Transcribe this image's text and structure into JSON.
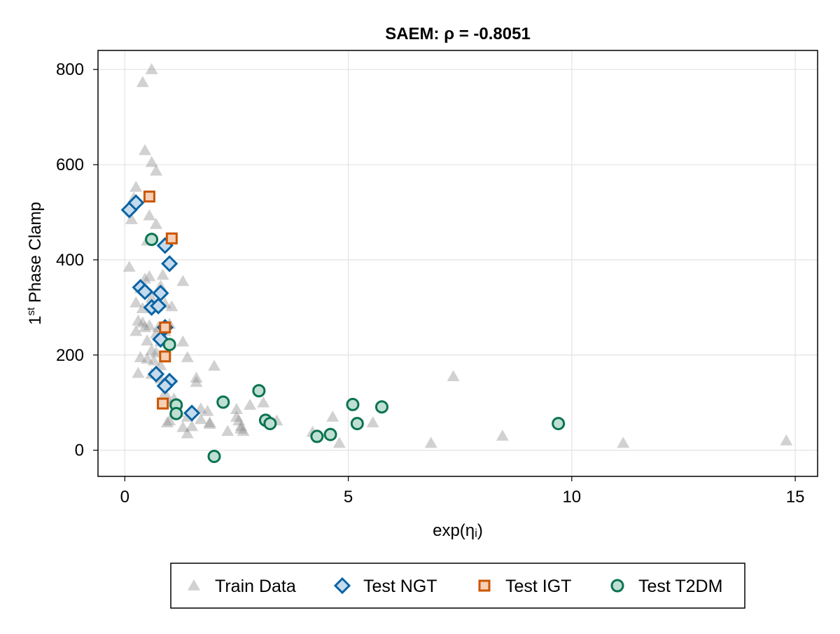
{
  "chart_data": {
    "type": "scatter",
    "title": "SAEM: ρ = -0.8051",
    "xlabel": "exp(ηᵢ)",
    "ylabel": {
      "main": "1",
      "sup": "st",
      "rest": " Phase Clamp"
    },
    "xlim": [
      -0.6,
      15.5
    ],
    "ylim": [
      -55,
      840
    ],
    "xticks": [
      0,
      5,
      10,
      15
    ],
    "yticks": [
      0,
      200,
      400,
      600,
      800
    ],
    "grid": true,
    "legend_position": "bottom",
    "series": [
      {
        "name": "Train Data",
        "marker": "triangle",
        "color": "#8c8c8c",
        "points": [
          [
            0.6,
            800
          ],
          [
            0.4,
            773
          ],
          [
            0.45,
            630
          ],
          [
            0.6,
            605
          ],
          [
            0.7,
            587
          ],
          [
            0.25,
            553
          ],
          [
            0.2,
            530
          ],
          [
            0.55,
            493
          ],
          [
            0.15,
            485
          ],
          [
            0.7,
            475
          ],
          [
            0.5,
            440
          ],
          [
            0.1,
            385
          ],
          [
            0.45,
            360
          ],
          [
            0.55,
            365
          ],
          [
            0.85,
            368
          ],
          [
            1.3,
            355
          ],
          [
            0.8,
            345
          ],
          [
            0.35,
            340
          ],
          [
            0.6,
            320
          ],
          [
            0.25,
            310
          ],
          [
            0.4,
            298
          ],
          [
            0.65,
            300
          ],
          [
            0.9,
            308
          ],
          [
            1.05,
            302
          ],
          [
            0.4,
            268
          ],
          [
            0.3,
            272
          ],
          [
            0.55,
            262
          ],
          [
            0.45,
            258
          ],
          [
            0.75,
            258
          ],
          [
            1.0,
            265
          ],
          [
            0.25,
            250
          ],
          [
            0.7,
            245
          ],
          [
            0.9,
            250
          ],
          [
            0.5,
            230
          ],
          [
            0.8,
            228
          ],
          [
            1.3,
            228
          ],
          [
            0.6,
            210
          ],
          [
            0.7,
            205
          ],
          [
            0.35,
            195
          ],
          [
            0.5,
            192
          ],
          [
            1.4,
            195
          ],
          [
            0.65,
            188
          ],
          [
            0.3,
            162
          ],
          [
            0.8,
            178
          ],
          [
            2.0,
            177
          ],
          [
            0.6,
            160
          ],
          [
            0.8,
            150
          ],
          [
            1.6,
            152
          ],
          [
            1.6,
            143
          ],
          [
            0.9,
            120
          ],
          [
            1.0,
            100
          ],
          [
            1.1,
            108
          ],
          [
            1.7,
            87
          ],
          [
            1.85,
            82
          ],
          [
            2.5,
            86
          ],
          [
            2.8,
            95
          ],
          [
            3.1,
            100
          ],
          [
            1.2,
            80
          ],
          [
            1.4,
            70
          ],
          [
            1.7,
            65
          ],
          [
            1.9,
            58
          ],
          [
            2.5,
            70
          ],
          [
            2.55,
            62
          ],
          [
            2.6,
            50
          ],
          [
            1.3,
            48
          ],
          [
            1.5,
            50
          ],
          [
            1.9,
            55
          ],
          [
            3.4,
            62
          ],
          [
            0.95,
            58
          ],
          [
            1.0,
            62
          ],
          [
            1.4,
            35
          ],
          [
            2.3,
            40
          ],
          [
            2.6,
            45
          ],
          [
            2.65,
            40
          ],
          [
            4.2,
            38
          ],
          [
            4.65,
            70
          ],
          [
            5.55,
            58
          ],
          [
            4.8,
            15
          ],
          [
            6.85,
            15
          ],
          [
            7.35,
            155
          ],
          [
            8.45,
            30
          ],
          [
            11.15,
            15
          ],
          [
            14.8,
            20
          ]
        ]
      },
      {
        "name": "Test NGT",
        "marker": "diamond",
        "color": "#0a64a4",
        "fill": "#c5dbed",
        "points": [
          [
            0.1,
            505
          ],
          [
            0.25,
            520
          ],
          [
            0.9,
            430
          ],
          [
            1.0,
            392
          ],
          [
            0.35,
            342
          ],
          [
            0.45,
            333
          ],
          [
            0.8,
            330
          ],
          [
            0.6,
            300
          ],
          [
            0.75,
            303
          ],
          [
            0.9,
            258
          ],
          [
            0.8,
            233
          ],
          [
            0.7,
            160
          ],
          [
            1.0,
            145
          ],
          [
            0.9,
            135
          ],
          [
            1.5,
            78
          ]
        ]
      },
      {
        "name": "Test IGT",
        "marker": "square",
        "color": "#cc5500",
        "fill": "#f6cfb7",
        "points": [
          [
            0.55,
            533
          ],
          [
            1.05,
            445
          ],
          [
            0.9,
            258
          ],
          [
            0.9,
            197
          ],
          [
            0.85,
            98
          ]
        ]
      },
      {
        "name": "Test T2DM",
        "marker": "circle",
        "color": "#0a7350",
        "fill": "#bfdfd2",
        "points": [
          [
            0.6,
            443
          ],
          [
            1.0,
            222
          ],
          [
            1.15,
            95
          ],
          [
            1.15,
            77
          ],
          [
            2.2,
            101
          ],
          [
            2.0,
            -13
          ],
          [
            3.0,
            125
          ],
          [
            3.15,
            63
          ],
          [
            3.25,
            56
          ],
          [
            4.3,
            29
          ],
          [
            4.6,
            33
          ],
          [
            5.1,
            96
          ],
          [
            5.2,
            56
          ],
          [
            5.75,
            91
          ],
          [
            9.7,
            56
          ]
        ]
      }
    ]
  }
}
